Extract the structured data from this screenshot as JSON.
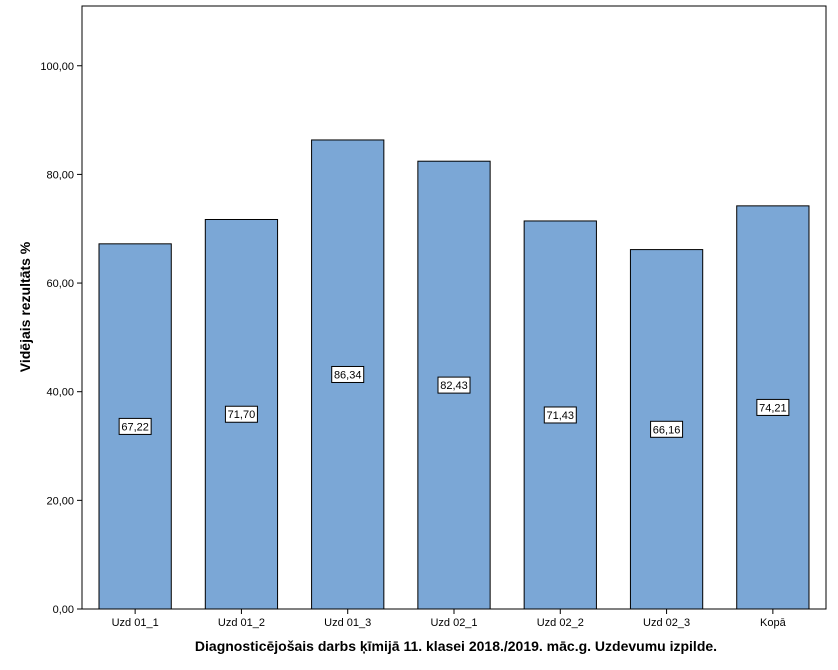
{
  "chart_data": {
    "type": "bar",
    "title": "",
    "xlabel": "Diagnosticējošais darbs ķīmijā 11. klasei 2018./2019. māc.g. Uzdevumu izpilde.",
    "ylabel": "Vidējais rezultāts %",
    "categories": [
      "Uzd 01_1",
      "Uzd 01_2",
      "Uzd 01_3",
      "Uzd 02_1",
      "Uzd 02_2",
      "Uzd 02_3",
      "Kopā"
    ],
    "values": [
      67.22,
      71.7,
      86.34,
      82.43,
      71.43,
      66.16,
      74.21
    ],
    "value_labels": [
      "67,22",
      "71,70",
      "86,34",
      "82,43",
      "71,43",
      "66,16",
      "74,21"
    ],
    "yticks": [
      "0,00",
      "20,00",
      "40,00",
      "60,00",
      "80,00",
      "100,00"
    ],
    "ylim": [
      0,
      111
    ],
    "grid": false,
    "legend": "none",
    "colors": {
      "bar_fill": "#7ba7d6",
      "bar_stroke": "#000000"
    }
  }
}
